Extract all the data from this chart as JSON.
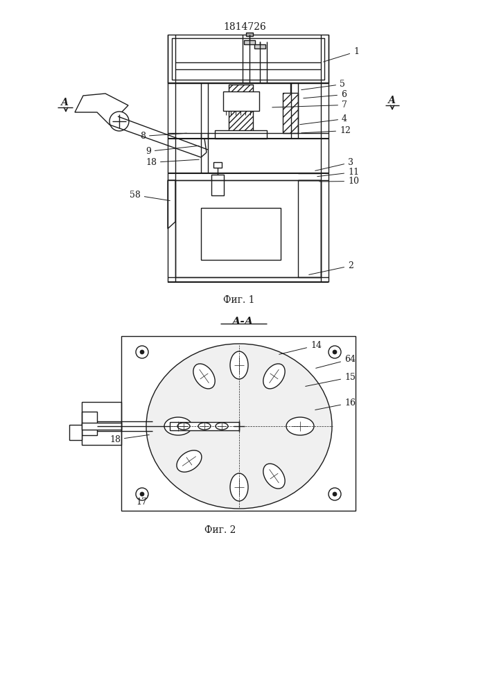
{
  "patent_number": "1814726",
  "fig1_caption": "Фиг. 1",
  "fig2_caption": "Фиг. 2",
  "section_label": "А-А",
  "bg_color": "#ffffff",
  "line_color": "#1a1a1a",
  "line_width": 1.0,
  "thin_line": 0.5,
  "thick_line": 1.5
}
